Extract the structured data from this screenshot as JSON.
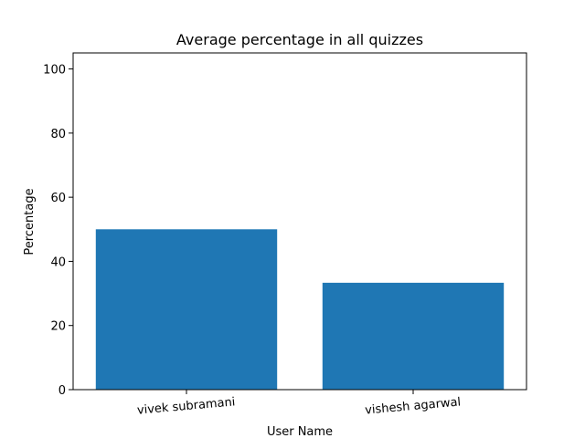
{
  "chart_data": {
    "type": "bar",
    "title": "Average percentage in all quizzes",
    "xlabel": "User Name",
    "ylabel": "Percentage",
    "categories": [
      "vivek subramani",
      "vishesh agarwal"
    ],
    "values": [
      50.0,
      33.33
    ],
    "ylim": [
      0,
      105
    ],
    "yticks": [
      0,
      20,
      40,
      60,
      80,
      100
    ],
    "bar_color": "#1f77b4",
    "grid": false,
    "legend": "none"
  }
}
